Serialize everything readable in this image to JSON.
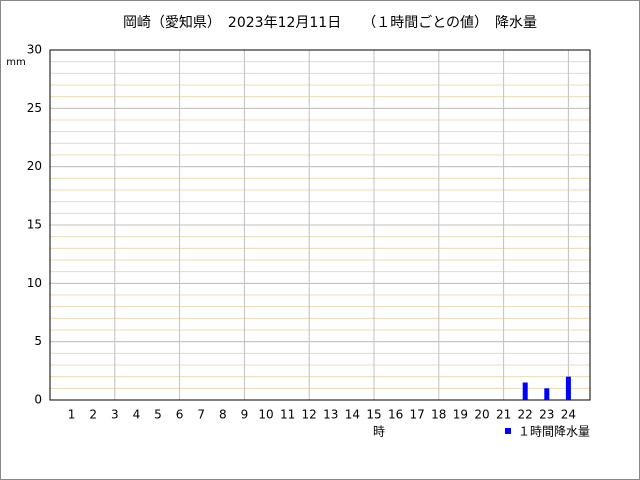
{
  "chart_data": {
    "type": "bar",
    "title": "岡崎（愛知県）　2023年12月11日　　（１時間ごとの値）　降水量",
    "y_unit": "mm",
    "x_label": "時",
    "categories": [
      "1",
      "2",
      "3",
      "4",
      "5",
      "6",
      "7",
      "8",
      "9",
      "10",
      "11",
      "12",
      "13",
      "14",
      "15",
      "16",
      "17",
      "18",
      "19",
      "20",
      "21",
      "22",
      "23",
      "24"
    ],
    "series": [
      {
        "name": "１時間降水量",
        "color": "#0000ff",
        "values": [
          0,
          0,
          0,
          0,
          0,
          0,
          0,
          0,
          0,
          0,
          0,
          0,
          0,
          0,
          0,
          0,
          0,
          0,
          0,
          0,
          0,
          1.5,
          1.0,
          2.0
        ]
      }
    ],
    "ylim": [
      0,
      30
    ],
    "yticks": [
      0,
      5,
      10,
      15,
      20,
      25,
      30
    ],
    "minor_grid_step": 1,
    "grid": true
  }
}
